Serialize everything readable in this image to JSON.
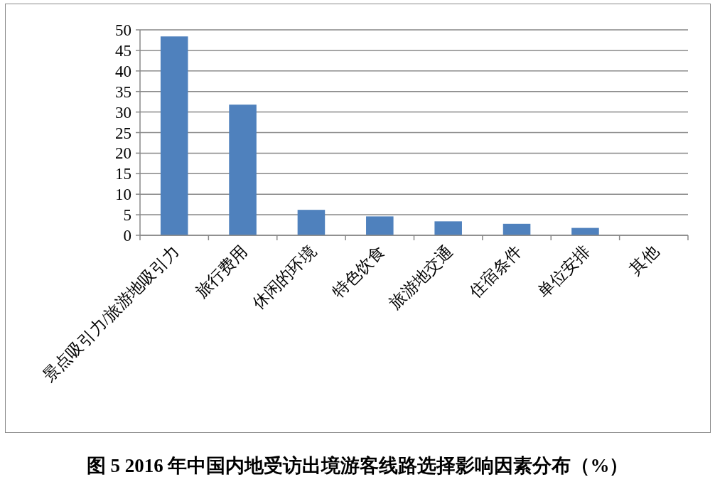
{
  "chart_data": {
    "type": "bar",
    "title": "图 5 2016 年中国内地受访出境游客线路选择影响因素分布（%）",
    "categories": [
      "景点吸引力/旅游地吸引力",
      "旅行费用",
      "休闲的环境",
      "特色饮食",
      "旅游地交通",
      "住宿条件",
      "单位安排",
      "其他"
    ],
    "values": [
      48.4,
      31.8,
      6.2,
      4.6,
      3.4,
      2.8,
      1.8,
      0
    ],
    "color": "#4f81bd",
    "ylim": [
      0,
      50
    ],
    "yticks": [
      0,
      5,
      10,
      15,
      20,
      25,
      30,
      35,
      40,
      45,
      50
    ],
    "grid": "y"
  }
}
